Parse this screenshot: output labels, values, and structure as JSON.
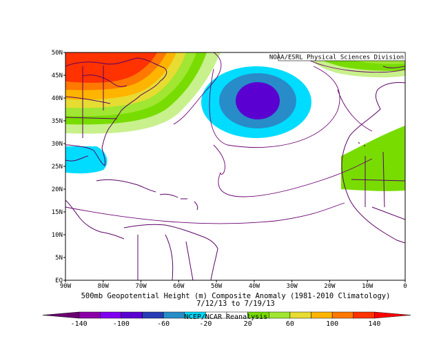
{
  "map": {
    "credit": "NOAA/ESRL Physical Sciences Division",
    "lat_labels": [
      "50N",
      "45N",
      "40N",
      "35N",
      "30N",
      "25N",
      "20N",
      "15N",
      "10N",
      "5N",
      "EQ"
    ],
    "lon_labels": [
      "90W",
      "80W",
      "70W",
      "60W",
      "50W",
      "40W",
      "30W",
      "20W",
      "10W",
      "0"
    ],
    "title_line1": "500mb Geopotential Height (m) Composite Anomaly (1981-2010 Climatology)",
    "title_line2": "7/12/13  to 7/19/13",
    "lat_range": [
      0,
      50
    ],
    "lon_range": [
      -90,
      0
    ]
  },
  "colorbar": {
    "labels": [
      "-140",
      "-100",
      "-60",
      "-20",
      "20",
      "60",
      "100",
      "140"
    ],
    "source": "NCEP/NCAR Reanalysis",
    "colors": [
      "#6a0070",
      "#8c00a8",
      "#8000f0",
      "#5a00d0",
      "#283cb4",
      "#288cc8",
      "#00dcff",
      "#ffffff",
      "#ffffff",
      "#78dc00",
      "#a0e632",
      "#e6dc32",
      "#ffb400",
      "#ff7800",
      "#ff3200",
      "#ff0000"
    ]
  }
}
